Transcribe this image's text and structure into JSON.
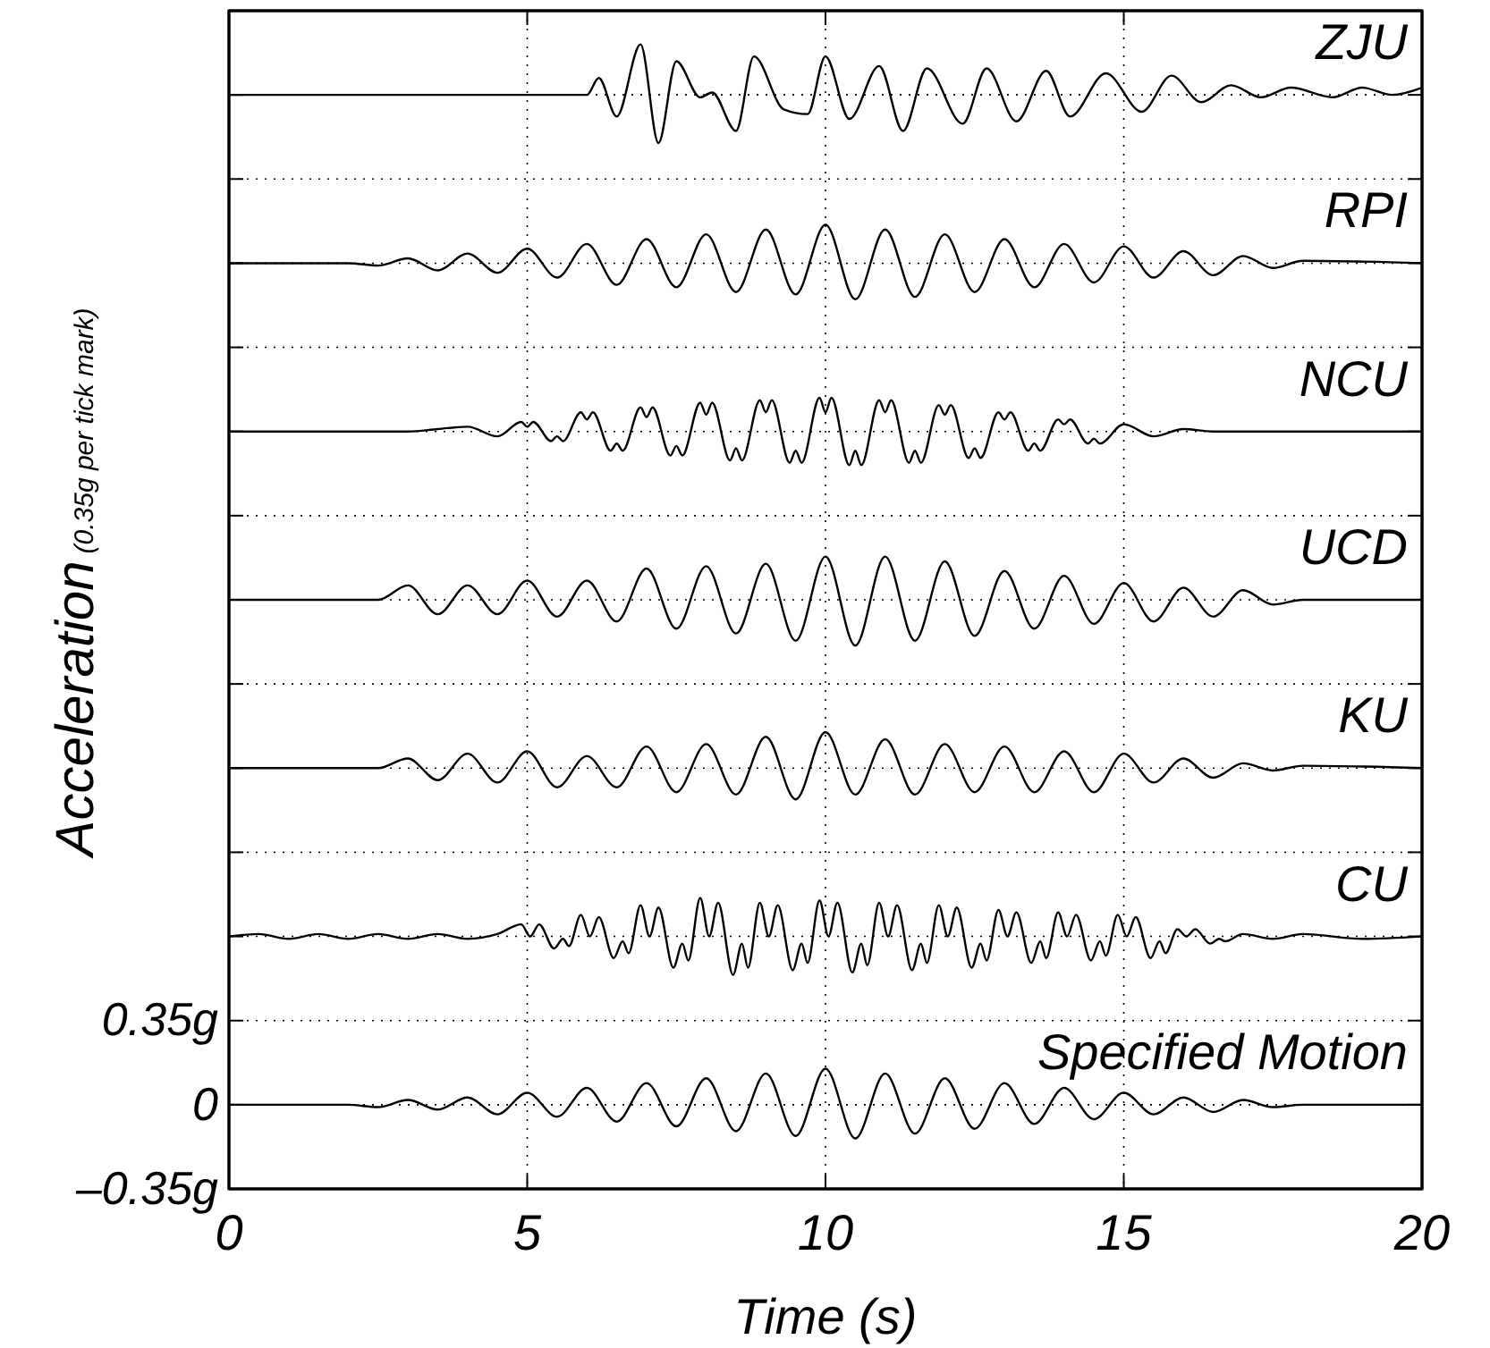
{
  "chart_data": {
    "type": "line",
    "xlabel": "Time (s)",
    "ylabel": "Acceleration",
    "annotations": [
      "(0.35g per tick mark)"
    ],
    "xlim": [
      0,
      20
    ],
    "xticks": [
      0,
      5,
      10,
      15,
      20
    ],
    "ylim": [
      -0.35,
      4.55
    ],
    "yticks": [
      {
        "value": -0.35,
        "label": "–0.35g"
      },
      0,
      {
        "value": 0.35,
        "label": "0.35g"
      },
      {
        "value": 0.7,
        "label": null
      },
      {
        "value": 1.05,
        "label": null
      },
      {
        "value": 1.4,
        "label": null
      },
      {
        "value": 1.75,
        "label": null
      },
      {
        "value": 2.1,
        "label": null
      },
      {
        "value": 2.45,
        "label": null
      },
      {
        "value": 2.8,
        "label": null
      },
      {
        "value": 3.15,
        "label": null
      },
      {
        "value": 3.5,
        "label": null
      },
      {
        "value": 3.85,
        "label": null
      },
      {
        "value": 4.2,
        "label": null
      },
      {
        "value": 4.55,
        "label": null
      }
    ],
    "grid": true,
    "legend": "right",
    "x": [
      0,
      2,
      2.5,
      3,
      3.5,
      4,
      4.5,
      5,
      5.5,
      6,
      6.5,
      7,
      7.5,
      8,
      8.5,
      9,
      9.5,
      10,
      10.5,
      11,
      11.5,
      12,
      12.5,
      13,
      13.5,
      14,
      14.5,
      15,
      15.5,
      16,
      16.5,
      17,
      17.5,
      18,
      20
    ],
    "series": [
      {
        "name": "ZJU",
        "color": "#000000",
        "x": [
          0,
          6,
          6.2,
          6.5,
          6.9,
          7.2,
          7.5,
          7.9,
          8.1,
          8.5,
          8.8,
          9.3,
          9.7,
          10,
          10.4,
          10.9,
          11.3,
          11.7,
          12.3,
          12.7,
          13.2,
          13.7,
          14.1,
          14.7,
          15.3,
          15.8,
          16.3,
          16.8,
          17.3,
          17.8,
          18.5,
          19,
          19.5,
          20
        ],
        "values": [
          4.2,
          4.2,
          4.27,
          4.11,
          4.41,
          4.0,
          4.34,
          4.19,
          4.21,
          4.05,
          4.36,
          4.14,
          4.12,
          4.36,
          4.1,
          4.32,
          4.05,
          4.31,
          4.08,
          4.31,
          4.09,
          4.3,
          4.11,
          4.29,
          4.13,
          4.28,
          4.17,
          4.24,
          4.19,
          4.23,
          4.19,
          4.23,
          4.2,
          4.23
        ]
      },
      {
        "name": "RPI",
        "color": "#000000",
        "values": [
          3.5,
          3.5,
          3.49,
          3.52,
          3.47,
          3.54,
          3.46,
          3.56,
          3.44,
          3.58,
          3.41,
          3.6,
          3.4,
          3.62,
          3.38,
          3.64,
          3.37,
          3.66,
          3.35,
          3.64,
          3.36,
          3.62,
          3.38,
          3.6,
          3.4,
          3.58,
          3.42,
          3.57,
          3.44,
          3.55,
          3.45,
          3.53,
          3.48,
          3.51,
          3.5
        ]
      },
      {
        "name": "NCU",
        "color": "#000000",
        "x": [
          0,
          3,
          3.5,
          4,
          4.5,
          4.9,
          5,
          5.1,
          5.4,
          5.5,
          5.6,
          5.9,
          6,
          6.1,
          6.4,
          6.5,
          6.6,
          6.9,
          7,
          7.1,
          7.4,
          7.5,
          7.6,
          7.9,
          8,
          8.1,
          8.4,
          8.5,
          8.6,
          8.9,
          9,
          9.1,
          9.4,
          9.5,
          9.6,
          9.9,
          10,
          10.1,
          10.4,
          10.5,
          10.6,
          10.9,
          11,
          11.1,
          11.4,
          11.5,
          11.6,
          11.9,
          12,
          12.1,
          12.4,
          12.5,
          12.6,
          12.9,
          13,
          13.1,
          13.4,
          13.5,
          13.6,
          13.9,
          14,
          14.1,
          14.4,
          14.5,
          14.6,
          15,
          15.5,
          16,
          16.5,
          20
        ],
        "values": [
          2.8,
          2.8,
          2.81,
          2.82,
          2.78,
          2.84,
          2.82,
          2.84,
          2.76,
          2.78,
          2.76,
          2.88,
          2.85,
          2.88,
          2.72,
          2.75,
          2.72,
          2.9,
          2.86,
          2.9,
          2.7,
          2.74,
          2.7,
          2.92,
          2.87,
          2.92,
          2.68,
          2.73,
          2.68,
          2.93,
          2.88,
          2.93,
          2.67,
          2.72,
          2.67,
          2.94,
          2.88,
          2.94,
          2.66,
          2.72,
          2.66,
          2.93,
          2.88,
          2.93,
          2.67,
          2.72,
          2.67,
          2.91,
          2.87,
          2.91,
          2.69,
          2.73,
          2.69,
          2.88,
          2.85,
          2.88,
          2.72,
          2.75,
          2.72,
          2.85,
          2.83,
          2.85,
          2.75,
          2.77,
          2.75,
          2.83,
          2.78,
          2.81,
          2.8,
          2.8
        ]
      },
      {
        "name": "UCD",
        "color": "#000000",
        "values": [
          2.1,
          2.1,
          2.1,
          2.16,
          2.04,
          2.16,
          2.04,
          2.18,
          2.03,
          2.18,
          2.01,
          2.23,
          1.98,
          2.24,
          1.96,
          2.25,
          1.93,
          2.28,
          1.91,
          2.28,
          1.93,
          2.26,
          1.95,
          2.22,
          1.98,
          2.2,
          2,
          2.17,
          2.01,
          2.15,
          2.03,
          2.14,
          2.08,
          2.1,
          2.1
        ]
      },
      {
        "name": "KU",
        "color": "#000000",
        "values": [
          1.4,
          1.4,
          1.4,
          1.44,
          1.35,
          1.46,
          1.34,
          1.47,
          1.32,
          1.45,
          1.32,
          1.49,
          1.3,
          1.5,
          1.29,
          1.53,
          1.27,
          1.55,
          1.29,
          1.52,
          1.29,
          1.5,
          1.3,
          1.49,
          1.3,
          1.47,
          1.3,
          1.46,
          1.34,
          1.44,
          1.36,
          1.42,
          1.39,
          1.41,
          1.4
        ]
      },
      {
        "name": "CU",
        "color": "#000000",
        "x": [
          0,
          0.5,
          1,
          1.5,
          2,
          2.5,
          3,
          3.5,
          4,
          4.5,
          4.9,
          5.05,
          5.2,
          5.45,
          5.6,
          5.7,
          5.9,
          6.05,
          6.2,
          6.45,
          6.6,
          6.7,
          6.9,
          7.05,
          7.2,
          7.45,
          7.6,
          7.7,
          7.9,
          8.05,
          8.2,
          8.45,
          8.6,
          8.7,
          8.9,
          9.05,
          9.2,
          9.45,
          9.6,
          9.7,
          9.9,
          10.05,
          10.2,
          10.45,
          10.6,
          10.7,
          10.9,
          11.05,
          11.2,
          11.45,
          11.6,
          11.7,
          11.9,
          12.05,
          12.2,
          12.45,
          12.6,
          12.7,
          12.9,
          13.05,
          13.2,
          13.45,
          13.6,
          13.7,
          13.9,
          14.05,
          14.2,
          14.45,
          14.6,
          14.7,
          14.9,
          15.05,
          15.2,
          15.45,
          15.6,
          15.7,
          15.9,
          16.05,
          16.2,
          16.45,
          16.6,
          16.7,
          17,
          17.5,
          18,
          19,
          20
        ],
        "values": [
          0.7,
          0.71,
          0.69,
          0.71,
          0.69,
          0.71,
          0.69,
          0.71,
          0.69,
          0.71,
          0.75,
          0.7,
          0.75,
          0.65,
          0.69,
          0.66,
          0.79,
          0.7,
          0.78,
          0.61,
          0.68,
          0.63,
          0.83,
          0.7,
          0.82,
          0.57,
          0.67,
          0.6,
          0.86,
          0.7,
          0.84,
          0.54,
          0.67,
          0.57,
          0.84,
          0.7,
          0.83,
          0.56,
          0.67,
          0.59,
          0.85,
          0.7,
          0.84,
          0.55,
          0.67,
          0.58,
          0.84,
          0.7,
          0.83,
          0.56,
          0.67,
          0.59,
          0.83,
          0.7,
          0.82,
          0.57,
          0.67,
          0.6,
          0.81,
          0.7,
          0.8,
          0.59,
          0.68,
          0.61,
          0.8,
          0.7,
          0.79,
          0.6,
          0.68,
          0.62,
          0.79,
          0.7,
          0.78,
          0.61,
          0.68,
          0.63,
          0.73,
          0.7,
          0.73,
          0.67,
          0.69,
          0.68,
          0.71,
          0.69,
          0.71,
          0.69,
          0.7
        ]
      },
      {
        "name": "Specified Motion",
        "color": "#000000",
        "values": [
          0,
          0,
          -0.01,
          0.02,
          -0.02,
          0.03,
          -0.04,
          0.05,
          -0.05,
          0.07,
          -0.07,
          0.09,
          -0.09,
          0.11,
          -0.11,
          0.13,
          -0.13,
          0.15,
          -0.14,
          0.13,
          -0.12,
          0.11,
          -0.1,
          0.09,
          -0.08,
          0.07,
          -0.06,
          0.05,
          -0.04,
          0.03,
          -0.03,
          0.02,
          -0.01,
          0,
          0
        ]
      }
    ]
  }
}
